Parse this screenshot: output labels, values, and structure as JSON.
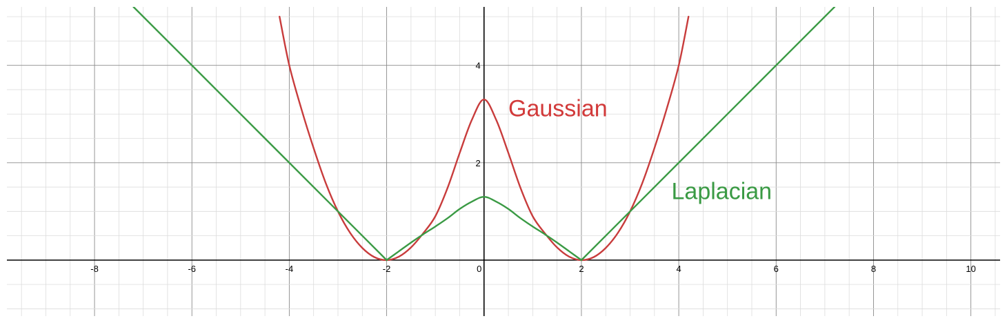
{
  "chart_data": {
    "type": "line",
    "title": "",
    "xlabel": "",
    "ylabel": "",
    "xlim": [
      -9.8,
      10.6
    ],
    "ylim": [
      -1.15,
      5.2
    ],
    "grid": true,
    "minor_grid_step": 0.5,
    "major_grid_step": 2,
    "x_ticks": [
      -8,
      -6,
      -4,
      -2,
      0,
      2,
      4,
      6,
      8,
      10
    ],
    "y_ticks": [
      2,
      4
    ],
    "series": [
      {
        "name": "Gaussian",
        "color": "#c83c3c",
        "x": [
          -4.2,
          -4.0,
          -3.75,
          -3.5,
          -3.25,
          -3.0,
          -2.75,
          -2.5,
          -2.25,
          -2.0,
          -1.75,
          -1.5,
          -1.25,
          -1.0,
          -0.75,
          -0.5,
          -0.25,
          0.0,
          0.25,
          0.5,
          0.75,
          1.0,
          1.25,
          1.5,
          1.75,
          2.0,
          2.25,
          2.5,
          2.75,
          3.0,
          3.25,
          3.5,
          3.75,
          4.0,
          4.2
        ],
        "y": [
          5.0,
          4.0,
          3.1,
          2.3,
          1.58,
          1.0,
          0.56,
          0.25,
          0.06,
          0.0,
          0.07,
          0.26,
          0.55,
          0.9,
          1.48,
          2.2,
          2.88,
          3.3,
          2.88,
          2.2,
          1.48,
          0.9,
          0.55,
          0.26,
          0.07,
          0.0,
          0.06,
          0.25,
          0.56,
          1.0,
          1.58,
          2.3,
          3.1,
          4.0,
          5.0
        ]
      },
      {
        "name": "Laplacian",
        "color": "#3a9a44",
        "x": [
          -7.2,
          -6.0,
          -4.0,
          -3.0,
          -2.0,
          -1.75,
          -1.5,
          -1.25,
          -1.0,
          -0.75,
          -0.5,
          -0.25,
          0.0,
          0.25,
          0.5,
          0.75,
          1.0,
          1.25,
          1.5,
          1.75,
          2.0,
          3.0,
          4.0,
          6.0,
          7.2
        ],
        "y": [
          5.2,
          4.0,
          2.0,
          1.0,
          0.0,
          0.18,
          0.36,
          0.53,
          0.69,
          0.86,
          1.05,
          1.2,
          1.3,
          1.2,
          1.05,
          0.86,
          0.69,
          0.53,
          0.36,
          0.18,
          0.0,
          1.0,
          2.0,
          4.0,
          5.2
        ]
      }
    ],
    "annotations": [
      {
        "text": "Gaussian",
        "x": 0.5,
        "y": 2.95,
        "color": "#d23a3a"
      },
      {
        "text": "Laplacian",
        "x": 3.85,
        "y": 1.25,
        "color": "#3a9a44"
      }
    ]
  }
}
